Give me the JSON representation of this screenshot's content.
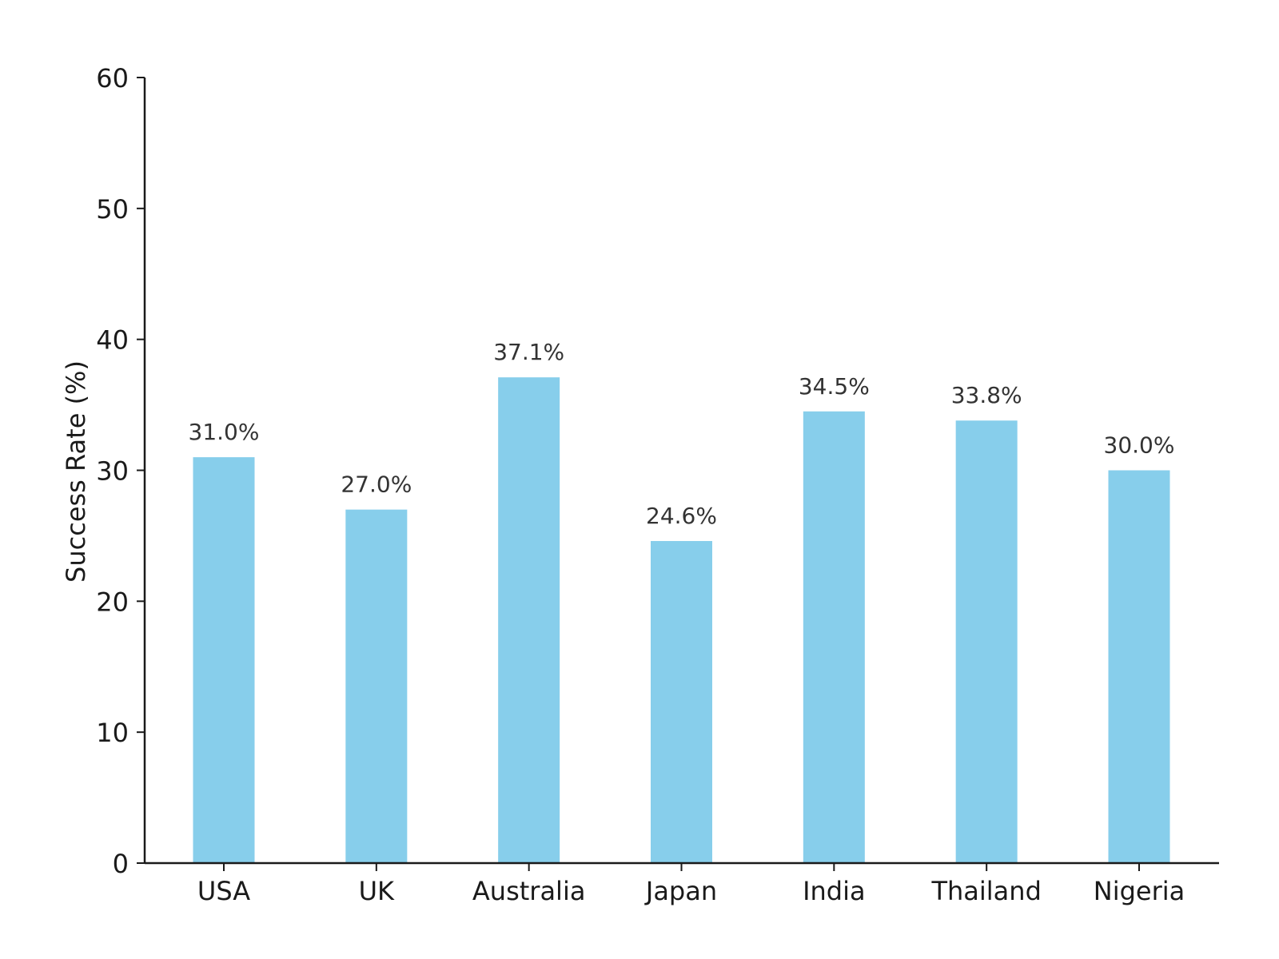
{
  "chart_data": {
    "type": "bar",
    "title": "",
    "xlabel": "",
    "ylabel": "Success Rate (%)",
    "categories": [
      "USA",
      "UK",
      "Australia",
      "Japan",
      "India",
      "Thailand",
      "Nigeria"
    ],
    "values": [
      31.0,
      27.0,
      37.1,
      24.6,
      34.5,
      33.8,
      30.0
    ],
    "data_labels": [
      "31.0%",
      "27.0%",
      "37.1%",
      "24.6%",
      "34.5%",
      "33.8%",
      "30.0%"
    ],
    "ylim": [
      0,
      60
    ],
    "yticks": [
      0,
      10,
      20,
      30,
      40,
      50,
      60
    ],
    "grid": false,
    "legend": "none",
    "colors": {
      "bar": "#87ceeb",
      "axis": "#1a1a1a",
      "label": "#333333"
    }
  }
}
